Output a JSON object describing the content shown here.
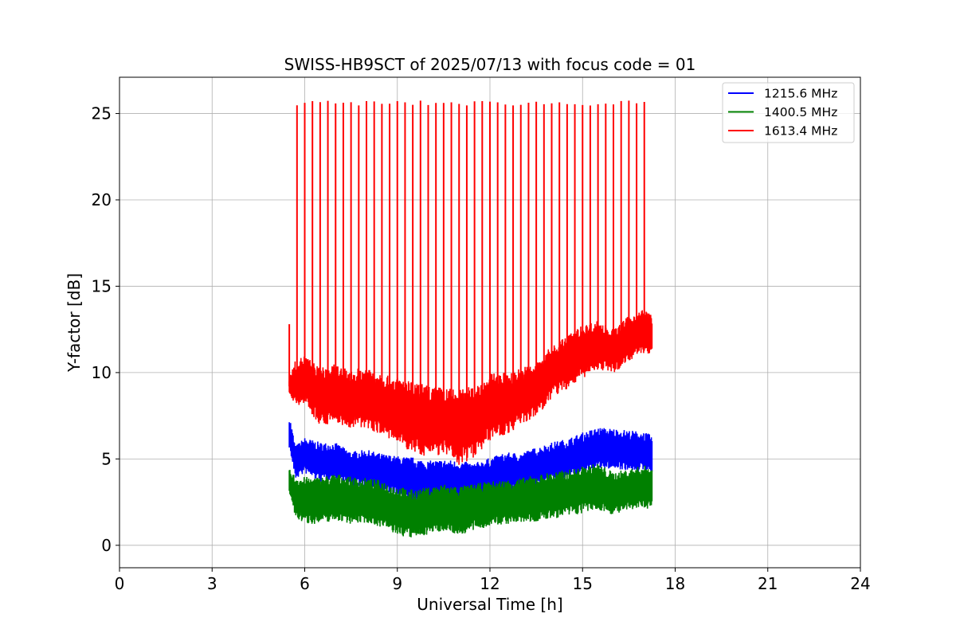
{
  "chart_data": {
    "type": "line",
    "title": "SWISS-HB9SCT of 2025/07/13 with focus code = 01",
    "xlabel": "Universal Time [h]",
    "ylabel": "Y-factor [dB]",
    "xlim": [
      0,
      24
    ],
    "ylim": [
      -1.3,
      27.1
    ],
    "xticks": [
      0,
      3,
      6,
      9,
      12,
      15,
      18,
      21,
      24
    ],
    "xtick_labels": [
      "0",
      "3",
      "6",
      "9",
      "12",
      "15",
      "18",
      "21",
      "24"
    ],
    "yticks": [
      0,
      5,
      10,
      15,
      20,
      25
    ],
    "ytick_labels": [
      "0",
      "5",
      "10",
      "15",
      "20",
      "25"
    ],
    "grid": true,
    "legend_position": "top-right",
    "series": [
      {
        "name": "1215.6 MHz",
        "color": "#0000ff",
        "x": [
          5.5,
          5.7,
          6.0,
          6.5,
          7.0,
          7.5,
          8.0,
          8.5,
          9.0,
          9.5,
          10.0,
          10.5,
          11.0,
          11.5,
          12.0,
          12.5,
          13.0,
          13.5,
          14.0,
          14.5,
          15.0,
          15.5,
          16.0,
          16.5,
          17.0,
          17.25
        ],
        "y": [
          6.6,
          4.8,
          5.2,
          4.8,
          4.9,
          4.4,
          4.5,
          4.2,
          4.0,
          3.8,
          3.6,
          3.8,
          3.6,
          3.6,
          3.9,
          4.2,
          4.2,
          4.5,
          4.8,
          5.0,
          5.3,
          5.6,
          5.6,
          5.5,
          5.4,
          5.2
        ],
        "band": [
          1.5,
          1.5,
          1.6,
          1.8,
          1.6,
          1.6,
          1.6,
          1.7,
          1.8,
          2.0,
          2.0,
          1.8,
          2.0,
          1.8,
          1.8,
          1.8,
          1.8,
          1.8,
          1.8,
          1.8,
          1.9,
          1.9,
          1.8,
          1.8,
          1.8,
          1.8
        ]
      },
      {
        "name": "1400.5 MHz",
        "color": "#008000",
        "x": [
          5.5,
          5.7,
          6.0,
          6.5,
          7.0,
          7.5,
          8.0,
          8.5,
          9.0,
          9.5,
          10.0,
          10.5,
          11.0,
          11.5,
          12.0,
          12.5,
          13.0,
          13.5,
          14.0,
          14.5,
          15.0,
          15.5,
          16.0,
          16.5,
          17.0,
          17.25
        ],
        "y": [
          3.7,
          2.8,
          2.6,
          2.6,
          2.8,
          2.6,
          2.6,
          2.4,
          2.0,
          1.8,
          2.0,
          2.2,
          2.0,
          2.2,
          2.4,
          2.5,
          2.6,
          2.7,
          2.9,
          3.0,
          3.2,
          3.4,
          3.0,
          3.2,
          3.4,
          3.3
        ],
        "band": [
          1.1,
          1.9,
          2.1,
          2.1,
          2.1,
          2.1,
          2.0,
          2.1,
          2.2,
          2.2,
          2.1,
          2.1,
          2.2,
          2.1,
          2.0,
          2.0,
          2.0,
          2.1,
          2.1,
          2.1,
          2.1,
          2.1,
          1.9,
          1.9,
          1.9,
          1.9
        ]
      },
      {
        "name": "1613.4 MHz",
        "color": "#ff0000",
        "x": [
          5.5,
          5.7,
          6.0,
          6.5,
          7.0,
          7.5,
          8.0,
          8.5,
          9.0,
          9.5,
          10.0,
          10.5,
          11.0,
          11.5,
          12.0,
          12.5,
          13.0,
          13.5,
          14.0,
          14.5,
          15.0,
          15.5,
          16.0,
          16.5,
          17.0,
          17.25
        ],
        "y": [
          9.2,
          9.4,
          9.6,
          8.6,
          8.8,
          8.4,
          8.6,
          8.2,
          7.8,
          7.4,
          7.2,
          7.2,
          6.8,
          7.2,
          8.0,
          8.2,
          8.6,
          9.0,
          10.0,
          10.6,
          11.2,
          11.6,
          11.2,
          12.0,
          12.4,
          12.2
        ],
        "band": [
          0.8,
          2.0,
          2.2,
          2.6,
          2.6,
          2.6,
          2.8,
          2.8,
          3.0,
          3.2,
          3.2,
          3.0,
          3.4,
          3.2,
          3.0,
          2.8,
          2.6,
          2.4,
          2.4,
          2.4,
          2.4,
          2.2,
          2.0,
          2.0,
          2.0,
          1.8
        ]
      }
    ],
    "spikes": {
      "start": 5.75,
      "end": 17.0,
      "interval": 0.25,
      "peak": 25.6,
      "color": "#ff0000"
    }
  }
}
